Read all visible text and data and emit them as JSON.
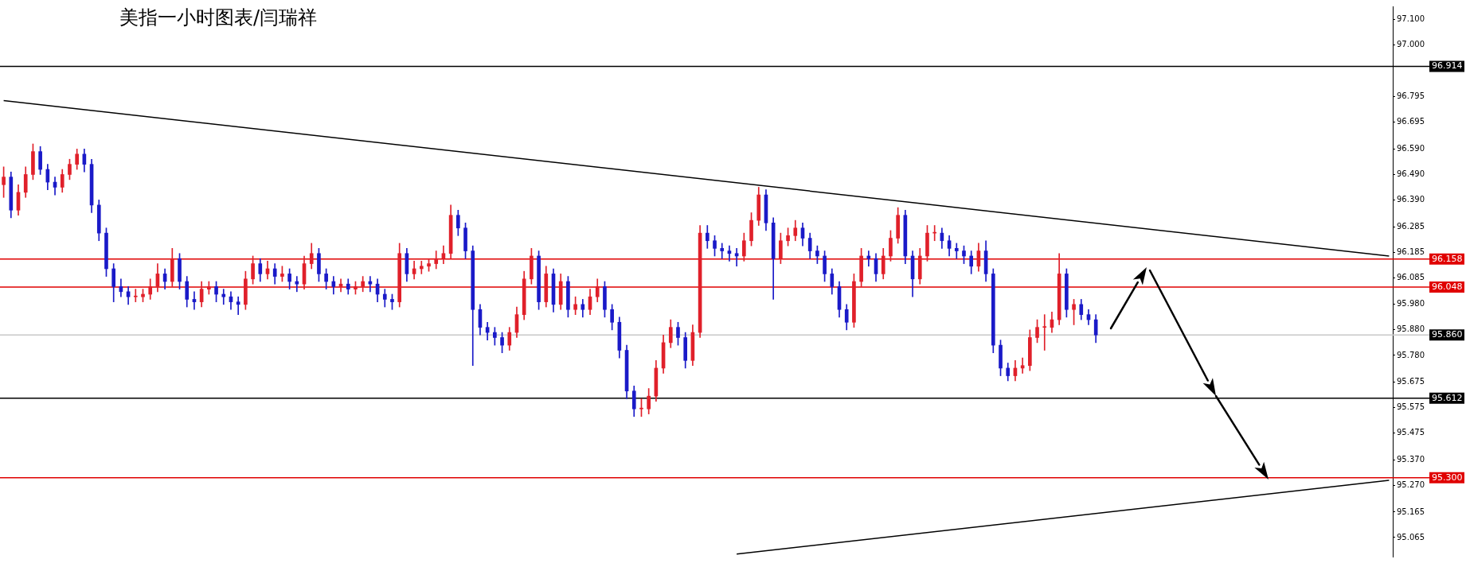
{
  "chart_data": {
    "type": "candlestick",
    "title": "美指一小时图表/闫瑞祥",
    "categories": [
      null,
      null,
      null,
      null,
      null,
      null,
      null,
      null,
      null,
      null,
      null,
      null,
      null,
      null,
      null,
      null,
      null,
      null,
      null,
      null,
      null,
      null,
      null,
      null,
      null,
      null,
      null,
      null,
      null,
      null,
      null,
      null,
      null,
      null,
      null,
      null,
      null,
      null,
      null,
      null,
      null,
      null,
      null,
      null,
      null,
      null,
      null,
      null,
      null,
      null,
      null,
      null,
      null,
      null,
      null,
      null,
      null,
      null,
      null,
      null,
      null,
      null,
      null,
      null,
      null,
      null,
      null,
      null,
      null,
      null,
      null,
      null,
      null,
      null,
      null,
      null,
      null,
      null,
      null,
      null,
      null,
      null,
      null,
      null,
      null,
      null,
      null,
      null,
      null,
      null,
      null,
      null,
      null,
      null,
      null,
      null,
      null,
      null,
      null,
      null,
      null,
      null,
      null,
      null,
      null,
      null,
      null,
      null,
      null,
      null,
      null,
      null,
      null,
      null,
      null,
      null,
      null,
      null,
      null,
      null,
      null,
      null,
      null,
      null,
      null,
      null,
      null,
      null,
      null,
      null,
      null,
      null,
      null,
      null,
      null,
      null,
      null,
      null,
      null,
      null,
      null,
      null,
      null,
      null,
      null,
      null,
      null,
      null,
      null,
      null,
      null,
      null,
      null,
      null,
      null,
      null,
      null,
      null,
      null,
      null,
      null,
      null,
      null,
      null,
      null,
      null,
      null,
      null,
      null,
      null,
      null,
      null,
      null,
      null,
      null,
      null,
      null,
      null,
      null,
      null,
      null,
      null,
      null,
      null,
      null,
      null,
      null,
      null,
      null,
      null
    ],
    "ohlc": [
      [
        96.45,
        96.52,
        96.4,
        96.48
      ],
      [
        96.48,
        96.5,
        96.32,
        96.35
      ],
      [
        96.35,
        96.45,
        96.33,
        96.42
      ],
      [
        96.42,
        96.52,
        96.4,
        96.49
      ],
      [
        96.49,
        96.61,
        96.47,
        96.58
      ],
      [
        96.58,
        96.6,
        96.49,
        96.51
      ],
      [
        96.51,
        96.53,
        96.43,
        96.46
      ],
      [
        96.46,
        96.48,
        96.41,
        96.44
      ],
      [
        96.44,
        96.51,
        96.42,
        96.49
      ],
      [
        96.49,
        96.55,
        96.47,
        96.53
      ],
      [
        96.53,
        96.59,
        96.51,
        96.57
      ],
      [
        96.57,
        96.59,
        96.5,
        96.53
      ],
      [
        96.53,
        96.55,
        96.34,
        96.37
      ],
      [
        96.37,
        96.39,
        96.23,
        96.26
      ],
      [
        96.26,
        96.28,
        96.09,
        96.12
      ],
      [
        96.12,
        96.14,
        95.99,
        96.05
      ],
      [
        96.05,
        96.08,
        96.01,
        96.03
      ],
      [
        96.03,
        96.05,
        95.98,
        96.01
      ],
      [
        96.01,
        96.04,
        95.99,
        96.01
      ],
      [
        96.01,
        96.04,
        95.99,
        96.02
      ],
      [
        96.02,
        96.08,
        96.0,
        96.05
      ],
      [
        96.05,
        96.14,
        96.03,
        96.1
      ],
      [
        96.1,
        96.12,
        96.04,
        96.07
      ],
      [
        96.07,
        96.2,
        96.05,
        96.16
      ],
      [
        96.16,
        96.18,
        96.04,
        96.07
      ],
      [
        96.07,
        96.09,
        95.97,
        96.0
      ],
      [
        96.0,
        96.03,
        95.96,
        95.99
      ],
      [
        95.99,
        96.07,
        95.97,
        96.04
      ],
      [
        96.04,
        96.07,
        96.02,
        96.05
      ],
      [
        96.05,
        96.07,
        95.99,
        96.02
      ],
      [
        96.02,
        96.04,
        95.98,
        96.01
      ],
      [
        96.01,
        96.03,
        95.96,
        95.99
      ],
      [
        95.99,
        96.01,
        95.94,
        95.98
      ],
      [
        95.98,
        96.11,
        95.96,
        96.08
      ],
      [
        96.08,
        96.17,
        96.06,
        96.14
      ],
      [
        96.14,
        96.16,
        96.07,
        96.1
      ],
      [
        96.1,
        96.15,
        96.08,
        96.12
      ],
      [
        96.12,
        96.14,
        96.06,
        96.09
      ],
      [
        96.09,
        96.13,
        96.07,
        96.1
      ],
      [
        96.1,
        96.12,
        96.04,
        96.07
      ],
      [
        96.07,
        96.09,
        96.03,
        96.06
      ],
      [
        96.06,
        96.17,
        96.04,
        96.14
      ],
      [
        96.14,
        96.22,
        96.12,
        96.18
      ],
      [
        96.18,
        96.2,
        96.07,
        96.1
      ],
      [
        96.1,
        96.12,
        96.04,
        96.07
      ],
      [
        96.07,
        96.09,
        96.02,
        96.05
      ],
      [
        96.05,
        96.08,
        96.03,
        96.06
      ],
      [
        96.06,
        96.08,
        96.02,
        96.04
      ],
      [
        96.04,
        96.07,
        96.02,
        96.05
      ],
      [
        96.05,
        96.09,
        96.03,
        96.07
      ],
      [
        96.07,
        96.09,
        96.03,
        96.06
      ],
      [
        96.06,
        96.08,
        95.99,
        96.02
      ],
      [
        96.02,
        96.04,
        95.97,
        96.0
      ],
      [
        96.0,
        96.02,
        95.96,
        95.99
      ],
      [
        95.99,
        96.22,
        95.97,
        96.18
      ],
      [
        96.18,
        96.2,
        96.07,
        96.1
      ],
      [
        96.1,
        96.15,
        96.08,
        96.12
      ],
      [
        96.12,
        96.15,
        96.1,
        96.13
      ],
      [
        96.13,
        96.16,
        96.11,
        96.14
      ],
      [
        96.14,
        96.19,
        96.12,
        96.16
      ],
      [
        96.16,
        96.21,
        96.14,
        96.18
      ],
      [
        96.18,
        96.37,
        96.16,
        96.33
      ],
      [
        96.33,
        96.35,
        96.25,
        96.28
      ],
      [
        96.28,
        96.3,
        96.16,
        96.19
      ],
      [
        96.19,
        96.21,
        95.74,
        95.96
      ],
      [
        95.96,
        95.98,
        95.86,
        95.89
      ],
      [
        95.89,
        95.91,
        95.84,
        95.87
      ],
      [
        95.87,
        95.89,
        95.82,
        95.85
      ],
      [
        95.85,
        95.87,
        95.79,
        95.82
      ],
      [
        95.82,
        95.89,
        95.8,
        95.87
      ],
      [
        95.87,
        95.97,
        95.85,
        95.94
      ],
      [
        95.94,
        96.11,
        95.92,
        96.08
      ],
      [
        96.08,
        96.2,
        96.06,
        96.17
      ],
      [
        96.17,
        96.19,
        95.96,
        95.99
      ],
      [
        95.99,
        96.13,
        95.97,
        96.1
      ],
      [
        96.1,
        96.12,
        95.95,
        95.98
      ],
      [
        95.98,
        96.1,
        95.96,
        96.07
      ],
      [
        96.07,
        96.09,
        95.93,
        95.96
      ],
      [
        95.96,
        96.01,
        95.94,
        95.98
      ],
      [
        95.98,
        96.0,
        95.93,
        95.96
      ],
      [
        95.96,
        96.04,
        95.94,
        96.01
      ],
      [
        96.01,
        96.08,
        95.99,
        96.05
      ],
      [
        96.05,
        96.07,
        95.93,
        95.96
      ],
      [
        95.96,
        95.98,
        95.88,
        95.91
      ],
      [
        95.91,
        95.93,
        95.77,
        95.8
      ],
      [
        95.8,
        95.82,
        95.61,
        95.64
      ],
      [
        95.64,
        95.66,
        95.54,
        95.57
      ],
      [
        95.57,
        95.61,
        95.54,
        95.57
      ],
      [
        95.57,
        95.65,
        95.55,
        95.62
      ],
      [
        95.62,
        95.76,
        95.6,
        95.73
      ],
      [
        95.73,
        95.86,
        95.71,
        95.83
      ],
      [
        95.83,
        95.92,
        95.81,
        95.89
      ],
      [
        95.89,
        95.91,
        95.82,
        95.85
      ],
      [
        95.85,
        95.87,
        95.73,
        95.76
      ],
      [
        95.76,
        95.9,
        95.74,
        95.87
      ],
      [
        95.87,
        96.29,
        95.85,
        96.26
      ],
      [
        96.26,
        96.29,
        96.2,
        96.23
      ],
      [
        96.23,
        96.25,
        96.17,
        96.2
      ],
      [
        96.2,
        96.22,
        96.16,
        96.19
      ],
      [
        96.19,
        96.21,
        96.15,
        96.18
      ],
      [
        96.18,
        96.2,
        96.13,
        96.17
      ],
      [
        96.17,
        96.26,
        96.15,
        96.23
      ],
      [
        96.23,
        96.34,
        96.21,
        96.31
      ],
      [
        96.31,
        96.44,
        96.29,
        96.41
      ],
      [
        96.41,
        96.43,
        96.27,
        96.3
      ],
      [
        96.3,
        96.32,
        96.0,
        96.16
      ],
      [
        96.16,
        96.26,
        96.14,
        96.23
      ],
      [
        96.23,
        96.28,
        96.21,
        96.25
      ],
      [
        96.25,
        96.31,
        96.23,
        96.28
      ],
      [
        96.28,
        96.3,
        96.21,
        96.24
      ],
      [
        96.24,
        96.26,
        96.16,
        96.19
      ],
      [
        96.19,
        96.21,
        96.14,
        96.17
      ],
      [
        96.17,
        96.19,
        96.07,
        96.1
      ],
      [
        96.1,
        96.12,
        96.02,
        96.05
      ],
      [
        96.05,
        96.07,
        95.93,
        95.96
      ],
      [
        95.96,
        95.98,
        95.88,
        95.91
      ],
      [
        95.91,
        96.1,
        95.89,
        96.07
      ],
      [
        96.07,
        96.2,
        96.05,
        96.17
      ],
      [
        96.17,
        96.19,
        96.13,
        96.16
      ],
      [
        96.16,
        96.18,
        96.07,
        96.1
      ],
      [
        96.1,
        96.2,
        96.08,
        96.17
      ],
      [
        96.17,
        96.27,
        96.15,
        96.24
      ],
      [
        96.24,
        96.36,
        96.22,
        96.33
      ],
      [
        96.33,
        96.35,
        96.14,
        96.17
      ],
      [
        96.17,
        96.19,
        96.01,
        96.08
      ],
      [
        96.08,
        96.2,
        96.06,
        96.17
      ],
      [
        96.17,
        96.29,
        96.15,
        96.26
      ],
      [
        96.26,
        96.29,
        96.23,
        96.26
      ],
      [
        96.26,
        96.28,
        96.2,
        96.23
      ],
      [
        96.23,
        96.25,
        96.17,
        96.2
      ],
      [
        96.2,
        96.22,
        96.16,
        96.19
      ],
      [
        96.19,
        96.21,
        96.14,
        96.17
      ],
      [
        96.17,
        96.19,
        96.1,
        96.13
      ],
      [
        96.13,
        96.22,
        96.11,
        96.19
      ],
      [
        96.19,
        96.23,
        96.07,
        96.1
      ],
      [
        96.1,
        96.12,
        95.79,
        95.82
      ],
      [
        95.82,
        95.84,
        95.7,
        95.73
      ],
      [
        95.73,
        95.75,
        95.68,
        95.7
      ],
      [
        95.7,
        95.76,
        95.68,
        95.73
      ],
      [
        95.73,
        95.77,
        95.71,
        95.74
      ],
      [
        95.74,
        95.88,
        95.72,
        95.85
      ],
      [
        95.85,
        95.92,
        95.83,
        95.89
      ],
      [
        95.89,
        95.94,
        95.8,
        95.89
      ],
      [
        95.89,
        95.95,
        95.87,
        95.92
      ],
      [
        95.92,
        96.18,
        95.9,
        96.1
      ],
      [
        96.1,
        96.12,
        95.93,
        95.96
      ],
      [
        95.96,
        96.0,
        95.9,
        95.98
      ],
      [
        95.98,
        96.0,
        95.92,
        95.94
      ],
      [
        95.94,
        95.96,
        95.9,
        95.92
      ],
      [
        95.92,
        95.94,
        95.83,
        95.86
      ],
      null,
      null,
      null,
      null,
      null,
      null,
      null,
      null,
      null,
      null,
      null,
      null,
      null,
      null,
      null,
      null,
      null,
      null,
      null,
      null,
      null,
      null,
      null,
      null,
      null,
      null,
      null,
      null,
      null,
      null,
      null,
      null,
      null,
      null,
      null,
      null,
      null,
      null,
      null,
      null
    ],
    "series": [
      {
        "type": "line",
        "color": "#000000",
        "values": [
          96.78,
          null,
          null,
          null,
          null,
          null,
          null,
          null,
          null,
          null,
          null,
          null,
          null,
          null,
          null,
          null,
          null,
          null,
          null,
          null,
          null,
          null,
          null,
          null,
          null,
          null,
          null,
          null,
          null,
          null,
          null,
          null,
          null,
          null,
          null,
          null,
          null,
          null,
          null,
          null,
          null,
          null,
          null,
          null,
          null,
          null,
          null,
          null,
          null,
          null,
          null,
          null,
          null,
          null,
          null,
          null,
          null,
          null,
          null,
          null,
          null,
          null,
          null,
          null,
          null,
          null,
          null,
          null,
          null,
          null,
          null,
          null,
          null,
          null,
          null,
          null,
          null,
          null,
          null,
          null,
          null,
          null,
          null,
          null,
          null,
          null,
          null,
          null,
          null,
          null,
          null,
          null,
          null,
          null,
          null,
          null,
          null,
          null,
          null,
          null,
          null,
          null,
          null,
          null,
          null,
          null,
          null,
          null,
          null,
          null,
          null,
          null,
          null,
          null,
          null,
          null,
          null,
          null,
          null,
          null,
          null,
          null,
          null,
          null,
          null,
          null,
          null,
          null,
          null,
          null,
          null,
          null,
          null,
          null,
          null,
          null,
          null,
          null,
          null,
          null,
          null,
          null,
          null,
          null,
          null,
          null,
          null,
          null,
          null,
          null,
          null,
          null,
          null,
          null,
          null,
          null,
          null,
          null,
          null,
          null,
          null,
          null,
          null,
          null,
          null,
          null,
          null,
          null,
          null,
          null,
          null,
          null,
          null,
          null,
          null,
          null,
          null,
          null,
          null,
          null,
          null,
          null,
          null,
          null,
          null,
          null,
          null,
          null,
          null,
          96.17
        ]
      },
      {
        "type": "line",
        "color": "#000000",
        "values": [
          null,
          null,
          null,
          null,
          null,
          null,
          null,
          null,
          null,
          null,
          null,
          null,
          null,
          null,
          null,
          null,
          null,
          null,
          null,
          null,
          null,
          null,
          null,
          null,
          null,
          null,
          null,
          null,
          null,
          null,
          null,
          null,
          null,
          null,
          null,
          null,
          null,
          null,
          null,
          null,
          null,
          null,
          null,
          null,
          null,
          null,
          null,
          null,
          null,
          null,
          null,
          null,
          null,
          null,
          null,
          null,
          null,
          null,
          null,
          null,
          null,
          null,
          null,
          null,
          null,
          null,
          null,
          null,
          null,
          null,
          null,
          null,
          null,
          null,
          null,
          null,
          null,
          null,
          null,
          null,
          null,
          null,
          null,
          null,
          null,
          null,
          null,
          null,
          null,
          null,
          null,
          null,
          null,
          null,
          null,
          null,
          null,
          null,
          null,
          null,
          95.0,
          null,
          null,
          null,
          null,
          null,
          null,
          null,
          null,
          null,
          null,
          null,
          null,
          null,
          null,
          null,
          null,
          null,
          null,
          null,
          null,
          null,
          null,
          null,
          null,
          null,
          null,
          null,
          null,
          null,
          null,
          null,
          null,
          null,
          null,
          null,
          null,
          null,
          null,
          null,
          null,
          null,
          null,
          null,
          null,
          null,
          null,
          null,
          null,
          null,
          null,
          null,
          null,
          null,
          null,
          null,
          null,
          null,
          null,
          null,
          null,
          null,
          null,
          null,
          null,
          null,
          null,
          null,
          null,
          null,
          null,
          null,
          null,
          null,
          null,
          null,
          null,
          null,
          null,
          null,
          null,
          null,
          null,
          null,
          null,
          null,
          null,
          null,
          null,
          95.29
        ]
      }
    ],
    "ylim": [
      94.99,
      97.15
    ],
    "yticks": [
      {
        "value": 97.1,
        "label": "97.100"
      },
      {
        "value": 97.0,
        "label": "97.000"
      },
      {
        "value": 96.795,
        "label": "96.795"
      },
      {
        "value": 96.695,
        "label": "96.695"
      },
      {
        "value": 96.59,
        "label": "96.590"
      },
      {
        "value": 96.49,
        "label": "96.490"
      },
      {
        "value": 96.39,
        "label": "96.390"
      },
      {
        "value": 96.285,
        "label": "96.285"
      },
      {
        "value": 96.185,
        "label": "96.185"
      },
      {
        "value": 96.085,
        "label": "96.085"
      },
      {
        "value": 95.98,
        "label": "95.980"
      },
      {
        "value": 95.88,
        "label": "95.880"
      },
      {
        "value": 95.78,
        "label": "95.780"
      },
      {
        "value": 95.675,
        "label": "95.675"
      },
      {
        "value": 95.575,
        "label": "95.575"
      },
      {
        "value": 95.475,
        "label": "95.475"
      },
      {
        "value": 95.37,
        "label": "95.370"
      },
      {
        "value": 95.27,
        "label": "95.270"
      },
      {
        "value": 95.165,
        "label": "95.165"
      },
      {
        "value": 95.065,
        "label": "95.065"
      }
    ],
    "ref_lines": [
      {
        "axis": "y",
        "value": 96.914,
        "label": "96.914",
        "color": "#000000"
      },
      {
        "axis": "y",
        "value": 96.158,
        "label": "96.158",
        "color": "#e00000"
      },
      {
        "axis": "y",
        "value": 96.048,
        "label": "96.048",
        "color": "#e00000"
      },
      {
        "axis": "y",
        "value": 95.86,
        "label": "95.860",
        "color": "#c8c8c8"
      },
      {
        "axis": "y",
        "value": 95.612,
        "label": "95.612",
        "color": "#000000"
      },
      {
        "axis": "y",
        "value": 95.3,
        "label": "95.300",
        "color": "#e00000"
      }
    ],
    "tick_labels": "y"
  }
}
